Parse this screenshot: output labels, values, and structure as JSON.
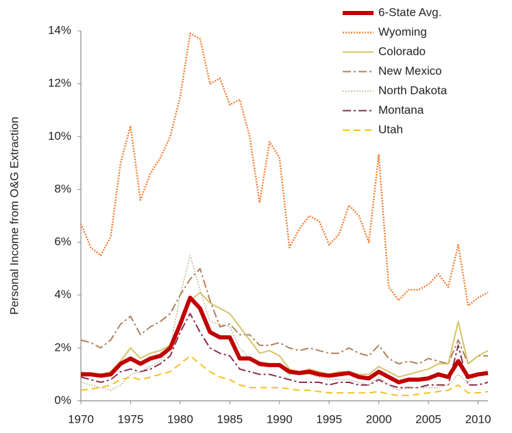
{
  "chart_data": {
    "type": "line",
    "y_label": "Personal Income from O&G Extraction",
    "x": [
      1970,
      1971,
      1972,
      1973,
      1974,
      1975,
      1976,
      1977,
      1978,
      1979,
      1980,
      1981,
      1982,
      1983,
      1984,
      1985,
      1986,
      1987,
      1988,
      1989,
      1990,
      1991,
      1992,
      1993,
      1994,
      1995,
      1996,
      1997,
      1998,
      1999,
      2000,
      2001,
      2002,
      2003,
      2004,
      2005,
      2006,
      2007,
      2008,
      2009,
      2010,
      2011
    ],
    "xlim": [
      1970,
      2011
    ],
    "xticks": [
      1970,
      1975,
      1980,
      1985,
      1990,
      1995,
      2000,
      2005,
      2010
    ],
    "ylim": [
      0,
      14
    ],
    "yticks": [
      {
        "value": 0,
        "label": "0%"
      },
      {
        "value": 2,
        "label": "2%"
      },
      {
        "value": 4,
        "label": "4%"
      },
      {
        "value": 6,
        "label": "6%"
      },
      {
        "value": 8,
        "label": "8%"
      },
      {
        "value": 10,
        "label": "10%"
      },
      {
        "value": 12,
        "label": "12%"
      },
      {
        "value": 14,
        "label": "14%"
      }
    ],
    "grid": false,
    "legend": "top-right",
    "series": [
      {
        "name": "6-State Avg.",
        "color": "#c00000",
        "dash": "solid",
        "width": 6,
        "values": [
          1.0,
          1.0,
          0.95,
          1.0,
          1.4,
          1.6,
          1.4,
          1.6,
          1.7,
          2.0,
          2.9,
          3.9,
          3.5,
          2.6,
          2.4,
          2.4,
          1.6,
          1.6,
          1.4,
          1.35,
          1.35,
          1.1,
          1.05,
          1.1,
          1.0,
          0.95,
          1.0,
          1.05,
          0.9,
          0.85,
          1.1,
          0.9,
          0.7,
          0.8,
          0.8,
          0.85,
          1.0,
          0.9,
          1.5,
          0.9,
          1.0,
          1.05
        ]
      },
      {
        "name": "Wyoming",
        "color": "#f47c30",
        "dash": "dotted",
        "width": 2.5,
        "values": [
          6.7,
          5.8,
          5.5,
          6.2,
          9.0,
          10.4,
          7.6,
          8.6,
          9.2,
          10.0,
          11.5,
          13.9,
          13.7,
          12.0,
          12.2,
          11.2,
          11.4,
          10.0,
          7.5,
          9.8,
          9.2,
          5.8,
          6.5,
          7.0,
          6.8,
          5.9,
          6.3,
          7.4,
          7.0,
          6.0,
          9.3,
          4.3,
          3.8,
          4.2,
          4.2,
          4.4,
          4.8,
          4.3,
          5.9,
          3.6,
          3.9,
          4.1
        ]
      },
      {
        "name": "Colorado",
        "color": "#d4c36a",
        "dash": "solid",
        "width": 2,
        "values": [
          1.1,
          1.0,
          1.0,
          1.1,
          1.5,
          2.0,
          1.6,
          1.8,
          1.9,
          2.1,
          3.0,
          3.8,
          4.1,
          3.7,
          3.5,
          3.3,
          2.8,
          2.3,
          1.8,
          1.9,
          1.7,
          1.2,
          1.1,
          1.2,
          1.1,
          1.0,
          1.1,
          1.1,
          1.0,
          1.0,
          1.3,
          1.1,
          0.9,
          1.0,
          1.1,
          1.2,
          1.4,
          1.4,
          3.0,
          1.4,
          1.7,
          1.9
        ]
      },
      {
        "name": "New Mexico",
        "color": "#b0805a",
        "dash": "dashdot",
        "width": 2,
        "values": [
          2.3,
          2.2,
          2.0,
          2.3,
          2.9,
          3.2,
          2.5,
          2.8,
          3.0,
          3.3,
          4.0,
          4.6,
          5.0,
          3.8,
          2.8,
          2.9,
          2.5,
          2.5,
          2.1,
          2.1,
          2.2,
          2.0,
          1.9,
          2.0,
          1.9,
          1.8,
          1.8,
          2.0,
          1.8,
          1.7,
          2.1,
          1.6,
          1.4,
          1.5,
          1.4,
          1.6,
          1.5,
          1.4,
          2.3,
          1.4,
          1.7,
          1.7
        ]
      },
      {
        "name": "North Dakota",
        "color": "#b8b890",
        "dash": "dotted",
        "width": 1.5,
        "values": [
          0.7,
          0.6,
          0.5,
          0.4,
          0.6,
          1.0,
          1.1,
          1.3,
          1.5,
          2.0,
          4.0,
          5.5,
          4.2,
          3.0,
          2.9,
          2.8,
          2.0,
          1.6,
          1.3,
          1.3,
          1.3,
          1.0,
          1.0,
          1.0,
          0.9,
          0.8,
          0.8,
          0.8,
          0.7,
          0.6,
          0.9,
          0.6,
          0.4,
          0.5,
          0.5,
          0.5,
          0.5,
          0.6,
          1.0,
          0.7,
          1.0,
          1.2
        ]
      },
      {
        "name": "Montana",
        "color": "#8b2a4a",
        "dash": "dashdot",
        "width": 2,
        "values": [
          0.9,
          0.8,
          0.7,
          0.8,
          1.1,
          1.2,
          1.1,
          1.2,
          1.4,
          1.7,
          2.6,
          3.3,
          2.6,
          2.0,
          1.8,
          1.7,
          1.2,
          1.1,
          1.0,
          1.0,
          0.9,
          0.8,
          0.7,
          0.7,
          0.7,
          0.6,
          0.7,
          0.7,
          0.6,
          0.6,
          0.8,
          0.6,
          0.5,
          0.5,
          0.5,
          0.6,
          0.6,
          0.6,
          2.1,
          0.6,
          0.6,
          0.7
        ]
      },
      {
        "name": "Utah",
        "color": "#f5c020",
        "dash": "dashed",
        "width": 2,
        "values": [
          0.4,
          0.45,
          0.5,
          0.6,
          0.8,
          0.9,
          0.8,
          0.9,
          1.0,
          1.1,
          1.4,
          1.7,
          1.4,
          1.1,
          0.9,
          0.8,
          0.6,
          0.5,
          0.5,
          0.5,
          0.5,
          0.45,
          0.4,
          0.4,
          0.35,
          0.3,
          0.3,
          0.3,
          0.3,
          0.3,
          0.35,
          0.25,
          0.2,
          0.2,
          0.25,
          0.3,
          0.35,
          0.4,
          0.6,
          0.3,
          0.3,
          0.35
        ]
      }
    ]
  }
}
